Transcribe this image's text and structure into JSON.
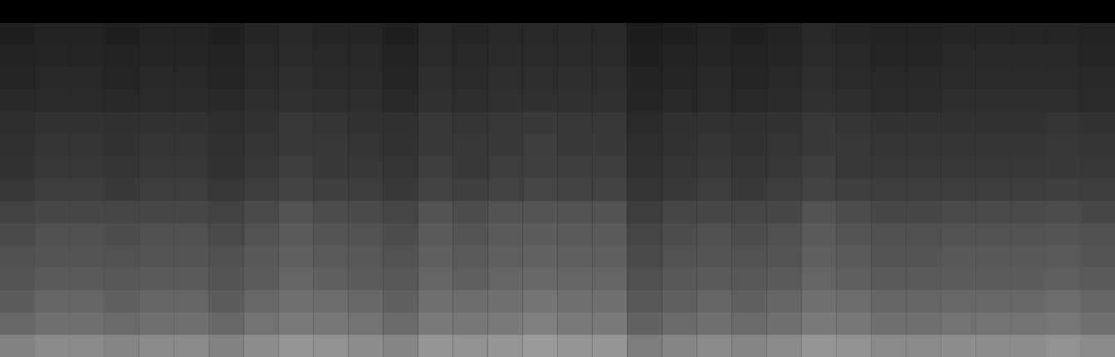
{
  "chart_data": {
    "type": "heatmap",
    "tick_labels": false,
    "grid": false,
    "cells": [
      [
        4,
        4,
        4,
        4,
        4,
        4,
        4,
        4,
        4,
        4,
        4,
        4,
        4,
        4,
        4,
        4,
        4,
        4,
        4,
        4,
        4,
        4,
        4,
        4,
        4,
        4,
        4,
        4,
        4,
        4,
        4,
        4
      ],
      [
        16,
        17,
        17,
        16,
        17,
        17,
        16,
        18,
        19,
        18,
        18,
        16,
        19,
        18,
        19,
        19,
        19,
        19,
        15,
        16,
        17,
        16,
        17,
        19,
        18,
        17,
        17,
        18,
        18,
        18,
        18,
        17
      ],
      [
        17,
        18,
        18,
        17,
        18,
        18,
        17,
        19,
        20,
        19,
        19,
        17,
        20,
        19,
        20,
        20,
        20,
        20,
        16,
        17,
        18,
        17,
        18,
        20,
        19,
        18,
        18,
        19,
        19,
        19,
        19,
        18
      ],
      [
        18,
        19,
        19,
        18,
        19,
        19,
        18,
        20,
        21,
        20,
        20,
        18,
        21,
        20,
        21,
        21,
        21,
        21,
        17,
        18,
        19,
        18,
        19,
        21,
        20,
        19,
        19,
        20,
        20,
        20,
        20,
        19
      ],
      [
        19,
        20,
        20,
        19,
        20,
        20,
        19,
        21,
        22,
        21,
        21,
        19,
        22,
        21,
        22,
        22,
        22,
        22,
        18,
        19,
        20,
        19,
        20,
        22,
        21,
        20,
        20,
        21,
        21,
        21,
        21,
        20
      ],
      [
        21,
        23,
        23,
        22,
        23,
        23,
        21,
        23,
        25,
        24,
        23,
        22,
        25,
        24,
        25,
        26,
        25,
        25,
        20,
        22,
        23,
        22,
        23,
        25,
        24,
        23,
        23,
        23,
        23,
        23,
        24,
        23
      ],
      [
        22,
        24,
        24,
        23,
        24,
        24,
        22,
        24,
        26,
        25,
        24,
        23,
        26,
        25,
        26,
        27,
        26,
        26,
        21,
        23,
        24,
        23,
        24,
        26,
        25,
        24,
        24,
        24,
        24,
        24,
        25,
        24
      ],
      [
        23,
        25,
        25,
        24,
        25,
        25,
        23,
        25,
        27,
        26,
        25,
        24,
        27,
        26,
        27,
        28,
        27,
        27,
        22,
        24,
        25,
        24,
        25,
        27,
        26,
        25,
        25,
        25,
        25,
        25,
        26,
        25
      ],
      [
        25,
        27,
        27,
        26,
        27,
        27,
        25,
        27,
        29,
        28,
        27,
        26,
        29,
        28,
        29,
        30,
        29,
        29,
        24,
        26,
        27,
        26,
        27,
        29,
        28,
        27,
        27,
        27,
        27,
        27,
        28,
        27
      ],
      [
        29,
        31,
        31,
        30,
        31,
        31,
        29,
        32,
        35,
        33,
        32,
        30,
        35,
        33,
        35,
        36,
        35,
        35,
        27,
        30,
        31,
        30,
        31,
        35,
        33,
        31,
        31,
        32,
        32,
        32,
        33,
        31
      ],
      [
        32,
        34,
        34,
        33,
        34,
        34,
        32,
        35,
        38,
        36,
        35,
        33,
        38,
        36,
        38,
        39,
        38,
        38,
        30,
        33,
        34,
        33,
        34,
        38,
        36,
        34,
        34,
        35,
        35,
        35,
        36,
        34
      ],
      [
        34,
        36,
        36,
        35,
        36,
        36,
        34,
        37,
        40,
        38,
        37,
        35,
        40,
        38,
        40,
        41,
        40,
        40,
        32,
        35,
        36,
        35,
        36,
        40,
        38,
        36,
        36,
        37,
        37,
        37,
        38,
        36
      ],
      [
        36,
        38,
        38,
        37,
        38,
        38,
        36,
        39,
        42,
        40,
        39,
        37,
        42,
        40,
        42,
        43,
        42,
        42,
        34,
        37,
        38,
        37,
        38,
        42,
        40,
        38,
        38,
        39,
        39,
        39,
        40,
        38
      ],
      [
        39,
        42,
        42,
        40,
        42,
        42,
        39,
        43,
        46,
        45,
        43,
        40,
        46,
        45,
        46,
        48,
        46,
        46,
        37,
        40,
        42,
        40,
        42,
        46,
        45,
        42,
        42,
        43,
        43,
        43,
        45,
        42
      ],
      [
        43,
        46,
        46,
        44,
        46,
        46,
        43,
        47,
        50,
        49,
        47,
        44,
        50,
        49,
        50,
        52,
        50,
        50,
        41,
        44,
        46,
        44,
        46,
        50,
        49,
        46,
        46,
        47,
        47,
        47,
        49,
        46
      ],
      [
        53,
        56,
        56,
        54,
        56,
        56,
        53,
        57,
        60,
        59,
        57,
        54,
        60,
        59,
        60,
        62,
        60,
        60,
        51,
        54,
        56,
        54,
        56,
        60,
        59,
        56,
        56,
        57,
        57,
        57,
        59,
        56
      ]
    ]
  }
}
